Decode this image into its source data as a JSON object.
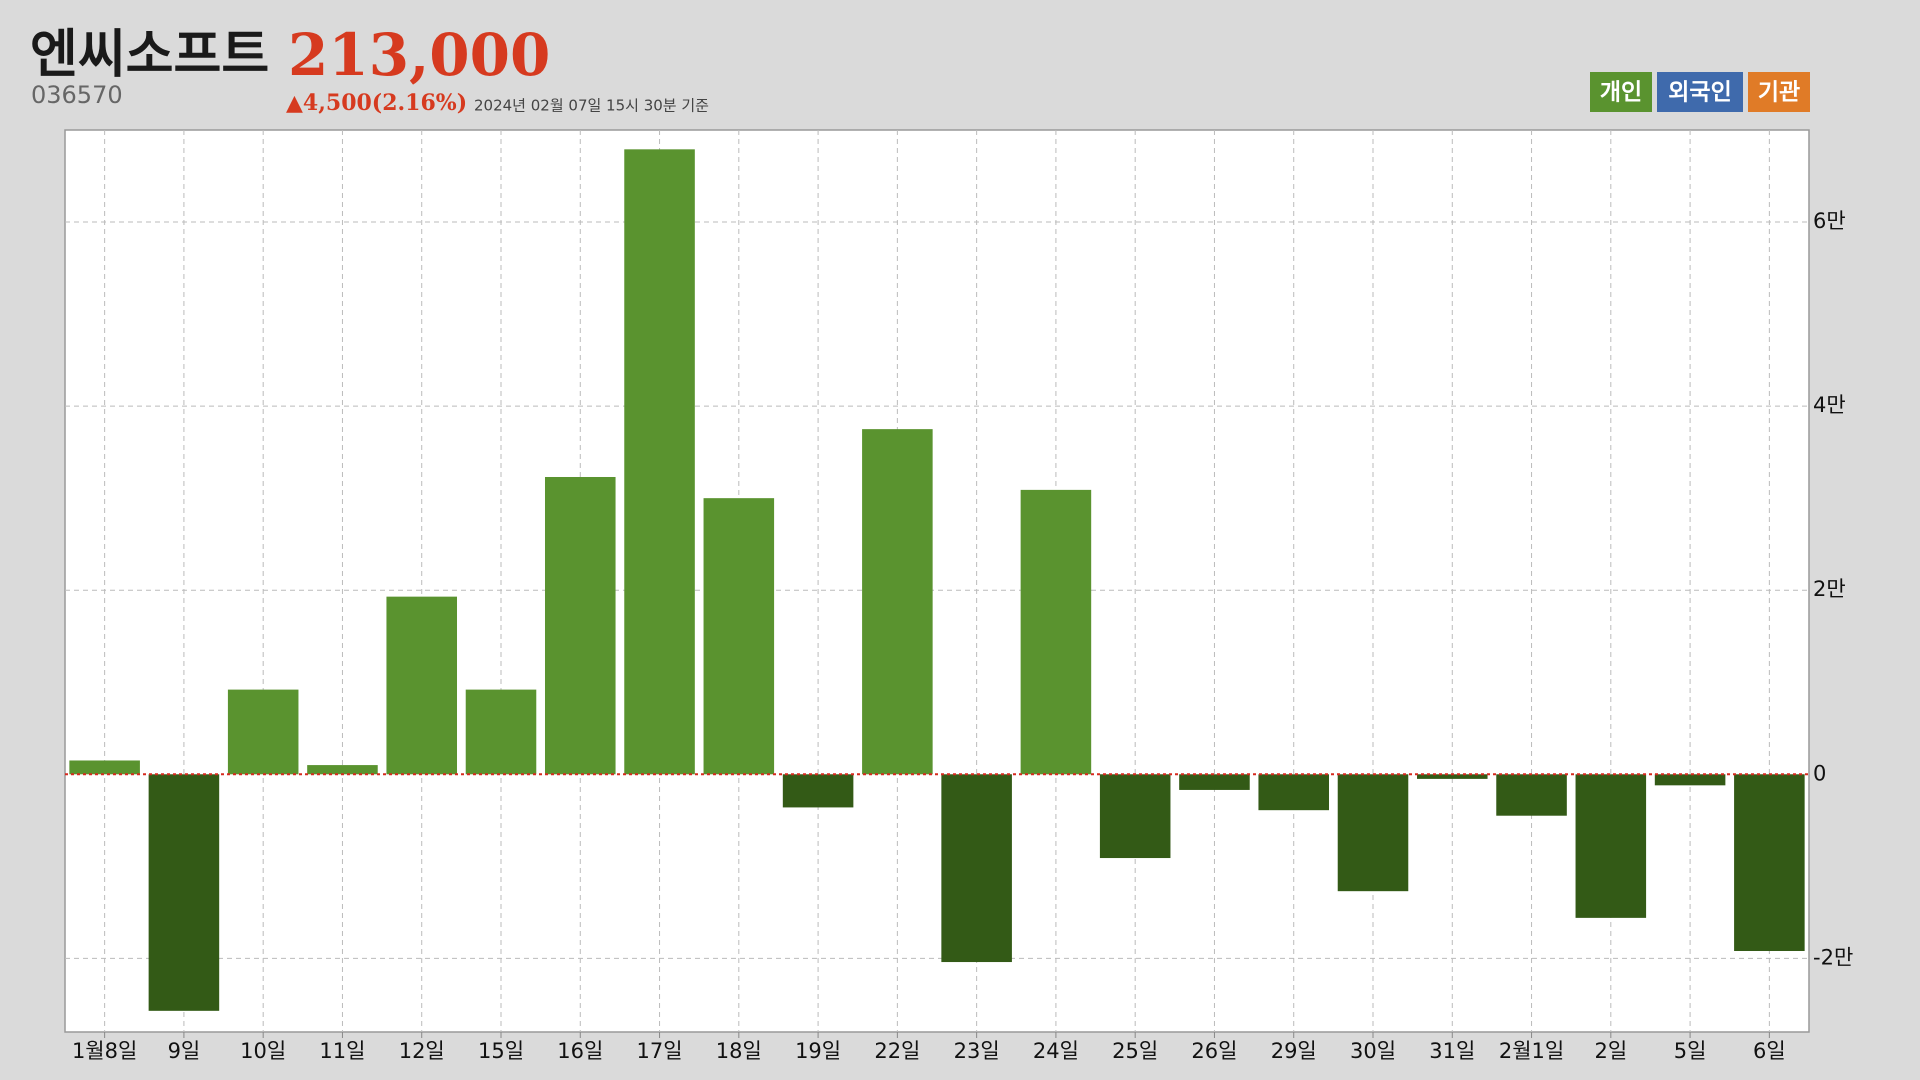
{
  "chart_data": {
    "type": "bar",
    "title": "엔씨소프트",
    "price": "213,000",
    "code": "036570",
    "change": "▲4,500(2.16%)",
    "timestamp": "2024년 02월 07일 15시 30분 기준",
    "legend": [
      {
        "name": "개인",
        "color": "#5a932f"
      },
      {
        "name": "외국인",
        "color": "#3f6aac"
      },
      {
        "name": "기관",
        "color": "#e07b27"
      }
    ],
    "categories": [
      "1월8일",
      "9일",
      "10일",
      "11일",
      "12일",
      "15일",
      "16일",
      "17일",
      "18일",
      "19일",
      "22일",
      "23일",
      "24일",
      "25일",
      "26일",
      "29일",
      "30일",
      "31일",
      "2월1일",
      "2일",
      "5일",
      "6일"
    ],
    "series": [
      {
        "name": "개인",
        "color": "#5a932f",
        "negative_color": "#335a16",
        "values": [
          1500,
          -25700,
          9200,
          1000,
          19300,
          9200,
          32300,
          67900,
          30000,
          -3600,
          37500,
          -20400,
          30900,
          -9100,
          -1700,
          -3900,
          -12700,
          -500,
          -4500,
          -15600,
          -1200,
          -19200
        ]
      }
    ],
    "ylim": [
      -28000,
      70000
    ],
    "yticks": [
      {
        "value": -20000,
        "label": "-2만"
      },
      0,
      {
        "value": 20000,
        "label": "2만"
      },
      {
        "value": 40000,
        "label": "4만"
      },
      {
        "value": 60000,
        "label": "6만"
      }
    ],
    "grid": true,
    "zero_line_color": "#d62a1f"
  }
}
